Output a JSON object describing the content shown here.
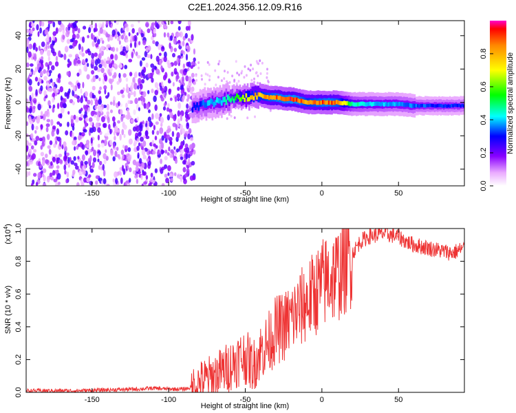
{
  "figure": {
    "title": "C2E1.2024.356.12.09.R16"
  },
  "chart_data": [
    {
      "type": "heatmap",
      "xlabel": "Height of straight line (km)",
      "ylabel": "Frequency (Hz)",
      "xlim": [
        -193,
        93
      ],
      "ylim": [
        -50,
        49
      ],
      "x_ticks": [
        "-150",
        "-100",
        "-50",
        "0",
        "50"
      ],
      "y_ticks": [
        "-40",
        "-20",
        "0",
        "20",
        "40"
      ],
      "colorbar": {
        "label": "Normalized spectral amplitude",
        "range": [
          0,
          1
        ],
        "ticks": [
          "0.0",
          "0.2",
          "0.4",
          "0.6",
          "0.8"
        ]
      },
      "ridge": {
        "x": [
          -85,
          -80,
          -75,
          -70,
          -65,
          -60,
          -55,
          -50,
          -45,
          -40,
          -35,
          -30,
          -25,
          -20,
          -15,
          -10,
          -5,
          0,
          5,
          10,
          20,
          30,
          40,
          50,
          60,
          70,
          80,
          93
        ],
        "frequency_hz": [
          -3,
          -2,
          -1,
          0,
          1,
          2,
          3,
          3,
          4,
          4,
          3,
          3,
          2,
          2,
          1,
          0,
          0,
          0,
          0,
          0,
          -1,
          -1,
          -1,
          -1,
          -2,
          -2,
          -2,
          -2
        ],
        "amplitude": [
          0.3,
          0.35,
          0.4,
          0.42,
          0.45,
          0.5,
          0.6,
          0.75,
          0.85,
          0.85,
          0.9,
          0.95,
          0.95,
          1.0,
          0.95,
          0.85,
          0.9,
          0.95,
          0.95,
          0.9,
          0.5,
          0.45,
          0.42,
          0.4,
          0.38,
          0.35,
          0.35,
          0.32
        ]
      },
      "noise_region_x": [
        -193,
        -83
      ],
      "noise_amplitude": [
        0.05,
        0.25
      ]
    },
    {
      "type": "line",
      "xlabel": "Height of straight line (km)",
      "ylabel": "SNR (10 * v/v)",
      "y_multiplier": "(x10",
      "y_multiplier_exp": "4",
      "y_multiplier_close": ")",
      "xlim": [
        -193,
        93
      ],
      "ylim": [
        0,
        1.0
      ],
      "x_ticks": [
        "-150",
        "-100",
        "-50",
        "0",
        "50"
      ],
      "y_ticks": [
        "0.0",
        "0.2",
        "0.4",
        "0.6",
        "0.8",
        "1.0"
      ],
      "series": [
        {
          "color": "#ee3333",
          "x": [
            -193,
            -180,
            -160,
            -140,
            -120,
            -110,
            -100,
            -90,
            -85,
            -80,
            -75,
            -70,
            -65,
            -60,
            -55,
            -50,
            -45,
            -40,
            -35,
            -30,
            -25,
            -20,
            -15,
            -10,
            -5,
            0,
            5,
            10,
            15,
            20,
            25,
            30,
            35,
            40,
            45,
            50,
            55,
            60,
            65,
            70,
            75,
            80,
            85,
            90,
            93
          ],
          "y": [
            0.01,
            0.01,
            0.01,
            0.015,
            0.02,
            0.025,
            0.02,
            0.02,
            0.03,
            0.06,
            0.08,
            0.1,
            0.13,
            0.16,
            0.2,
            0.22,
            0.16,
            0.25,
            0.3,
            0.38,
            0.4,
            0.45,
            0.5,
            0.55,
            0.6,
            0.66,
            0.7,
            0.72,
            0.78,
            0.85,
            0.92,
            0.95,
            0.96,
            0.97,
            0.96,
            0.95,
            0.92,
            0.9,
            0.89,
            0.88,
            0.87,
            0.86,
            0.85,
            0.87,
            0.88
          ]
        }
      ]
    }
  ]
}
